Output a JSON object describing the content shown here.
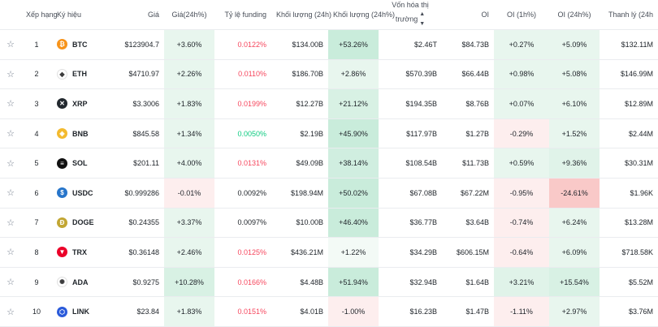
{
  "headers": {
    "rank": "Xếp hạng",
    "symbol": "Ký hiệu",
    "price": "Giá",
    "price_change": "Giá(24h%)",
    "funding": "Tỷ lệ funding",
    "volume": "Khối lượng (24h)",
    "volume_change": "Khối lượng (24h%)",
    "market_cap_line1": "Vốn hóa thị",
    "market_cap_line2": "trường",
    "oi": "OI",
    "oi_1h": "OI (1h%)",
    "oi_24h": "OI (24h%)",
    "liquidation": "Thanh lý (24h"
  },
  "icons": {
    "star": "star-outline-icon",
    "sort": "sort-icon"
  },
  "colors": {
    "negative_text": "#f6465d",
    "positive_text": "#0ecb81",
    "green_bg": "#c9ecdb",
    "light_green_bg": "#e8f6ee",
    "red_bg": "#fde3e3",
    "strong_red_bg": "#f9c9c8"
  },
  "rows": [
    {
      "rank": "1",
      "symbol": "BTC",
      "icon": "bitcoin-icon",
      "icon_color": "#f7931a",
      "icon_glyph": "₿",
      "price": "$123904.7",
      "price_change": "+3.60%",
      "funding": "0.0122%",
      "funding_tone": "neg",
      "volume": "$134.00B",
      "volume_change": "+53.26%",
      "market_cap": "$2.46T",
      "oi": "$84.73B",
      "oi_1h": "+0.27%",
      "oi_24h": "+5.09%",
      "liquidation": "$132.11M",
      "bg": {
        "price_change": "#e8f6ee",
        "volume_change": "#c9ecdb",
        "oi_1h": "#e8f6ee",
        "oi_24h": "#e8f6ee"
      }
    },
    {
      "rank": "2",
      "symbol": "ETH",
      "icon": "ethereum-icon",
      "icon_color": "#ffffff",
      "icon_glyph": "◆",
      "price": "$4710.97",
      "price_change": "+2.26%",
      "funding": "0.0110%",
      "funding_tone": "neg",
      "volume": "$186.70B",
      "volume_change": "+2.86%",
      "market_cap": "$570.39B",
      "oi": "$66.44B",
      "oi_1h": "+0.98%",
      "oi_24h": "+5.08%",
      "liquidation": "$146.99M",
      "bg": {
        "price_change": "#e8f6ee",
        "volume_change": "#e8f6ee",
        "oi_1h": "#e8f6ee",
        "oi_24h": "#e8f6ee"
      }
    },
    {
      "rank": "3",
      "symbol": "XRP",
      "icon": "xrp-icon",
      "icon_color": "#23292f",
      "icon_glyph": "✕",
      "price": "$3.3006",
      "price_change": "+1.83%",
      "funding": "0.0199%",
      "funding_tone": "neg",
      "volume": "$12.27B",
      "volume_change": "+21.12%",
      "market_cap": "$194.35B",
      "oi": "$8.76B",
      "oi_1h": "+0.07%",
      "oi_24h": "+6.10%",
      "liquidation": "$12.89M",
      "bg": {
        "price_change": "#e8f6ee",
        "volume_change": "#d8f1e4",
        "oi_1h": "#e8f6ee",
        "oi_24h": "#e8f6ee"
      }
    },
    {
      "rank": "4",
      "symbol": "BNB",
      "icon": "bnb-icon",
      "icon_color": "#f3ba2f",
      "icon_glyph": "◈",
      "price": "$845.58",
      "price_change": "+1.34%",
      "funding": "0.0050%",
      "funding_tone": "pos",
      "volume": "$2.19B",
      "volume_change": "+45.90%",
      "market_cap": "$117.97B",
      "oi": "$1.27B",
      "oi_1h": "-0.29%",
      "oi_24h": "+1.52%",
      "liquidation": "$2.44M",
      "bg": {
        "price_change": "#e8f6ee",
        "volume_change": "#c9ecdb",
        "oi_1h": "#fdeeee",
        "oi_24h": "#e8f6ee"
      }
    },
    {
      "rank": "5",
      "symbol": "SOL",
      "icon": "solana-icon",
      "icon_color": "#111111",
      "icon_glyph": "≡",
      "price": "$201.11",
      "price_change": "+4.00%",
      "funding": "0.0131%",
      "funding_tone": "neg",
      "volume": "$49.09B",
      "volume_change": "+38.14%",
      "market_cap": "$108.54B",
      "oi": "$11.73B",
      "oi_1h": "+0.59%",
      "oi_24h": "+9.36%",
      "liquidation": "$30.31M",
      "bg": {
        "price_change": "#e8f6ee",
        "volume_change": "#d0eee0",
        "oi_1h": "#e8f6ee",
        "oi_24h": "#e0f3e9"
      }
    },
    {
      "rank": "6",
      "symbol": "USDC",
      "icon": "usdc-icon",
      "icon_color": "#2775ca",
      "icon_glyph": "$",
      "price": "$0.999286",
      "price_change": "-0.01%",
      "funding": "0.0092%",
      "funding_tone": "black",
      "volume": "$198.94M",
      "volume_change": "+50.02%",
      "market_cap": "$67.08B",
      "oi": "$67.22M",
      "oi_1h": "-0.95%",
      "oi_24h": "-24.61%",
      "liquidation": "$1.96K",
      "bg": {
        "price_change": "#fdeeee",
        "volume_change": "#c9ecdb",
        "oi_1h": "#fdeeee",
        "oi_24h": "#f9c9c8"
      }
    },
    {
      "rank": "7",
      "symbol": "DOGE",
      "icon": "dogecoin-icon",
      "icon_color": "#c2a633",
      "icon_glyph": "Ð",
      "price": "$0.24355",
      "price_change": "+3.37%",
      "funding": "0.0097%",
      "funding_tone": "black",
      "volume": "$10.00B",
      "volume_change": "+46.40%",
      "market_cap": "$36.77B",
      "oi": "$3.64B",
      "oi_1h": "-0.74%",
      "oi_24h": "+6.24%",
      "liquidation": "$13.28M",
      "bg": {
        "price_change": "#e8f6ee",
        "volume_change": "#c9ecdb",
        "oi_1h": "#fdeeee",
        "oi_24h": "#e8f6ee"
      }
    },
    {
      "rank": "8",
      "symbol": "TRX",
      "icon": "tron-icon",
      "icon_color": "#eb0029",
      "icon_glyph": "▼",
      "price": "$0.36148",
      "price_change": "+2.46%",
      "funding": "0.0125%",
      "funding_tone": "neg",
      "volume": "$436.21M",
      "volume_change": "+1.22%",
      "market_cap": "$34.29B",
      "oi": "$606.15M",
      "oi_1h": "-0.64%",
      "oi_24h": "+6.09%",
      "liquidation": "$718.58K",
      "bg": {
        "price_change": "#e8f6ee",
        "volume_change": "#f3faf6",
        "oi_1h": "#fdeeee",
        "oi_24h": "#e8f6ee"
      }
    },
    {
      "rank": "9",
      "symbol": "ADA",
      "icon": "cardano-icon",
      "icon_color": "#ffffff",
      "icon_glyph": "✺",
      "price": "$0.9275",
      "price_change": "+10.28%",
      "funding": "0.0166%",
      "funding_tone": "neg",
      "volume": "$4.48B",
      "volume_change": "+51.94%",
      "market_cap": "$32.94B",
      "oi": "$1.64B",
      "oi_1h": "+3.21%",
      "oi_24h": "+15.54%",
      "liquidation": "$5.52M",
      "bg": {
        "price_change": "#d8f1e4",
        "volume_change": "#c9ecdb",
        "oi_1h": "#e0f3e9",
        "oi_24h": "#d8f1e4"
      }
    },
    {
      "rank": "10",
      "symbol": "LINK",
      "icon": "chainlink-icon",
      "icon_color": "#2a5ada",
      "icon_glyph": "⬡",
      "price": "$23.84",
      "price_change": "+1.83%",
      "funding": "0.0151%",
      "funding_tone": "neg",
      "volume": "$4.01B",
      "volume_change": "-1.00%",
      "market_cap": "$16.23B",
      "oi": "$1.47B",
      "oi_1h": "-1.11%",
      "oi_24h": "+2.97%",
      "liquidation": "$3.76M",
      "bg": {
        "price_change": "#e8f6ee",
        "volume_change": "#fdeeee",
        "oi_1h": "#fdeeee",
        "oi_24h": "#e8f6ee"
      }
    }
  ]
}
